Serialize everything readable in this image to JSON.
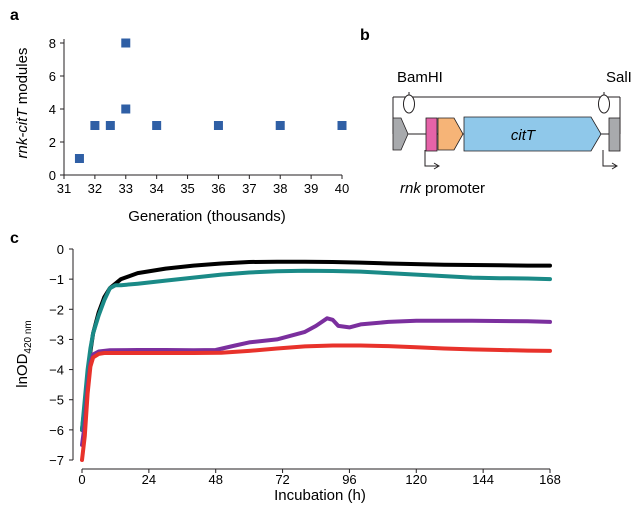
{
  "panels": {
    "a": "a",
    "b": "b",
    "c": "c"
  },
  "panel_b": {
    "site_left": "BamHI",
    "site_right": "SalI",
    "gene_label": "citT",
    "promoter_italic": "rnk",
    "promoter_text": " promoter",
    "colors": {
      "grey_block": "#a8aaad",
      "pink_block": "#e563a8",
      "orange_block": "#f6b477",
      "gene_block": "#8fc8ea"
    }
  },
  "chart_data": [
    {
      "type": "scatter",
      "title": "",
      "xlabel": "Generation (thousands)",
      "ylabel_italic": "rnk-citT",
      "ylabel_rest": " modules",
      "xlim": [
        31,
        40
      ],
      "ylim": [
        0,
        8
      ],
      "xticks": [
        31,
        32,
        33,
        34,
        35,
        36,
        37,
        38,
        39,
        40
      ],
      "yticks": [
        0,
        2,
        4,
        6,
        8
      ],
      "marker_color": "#2f5fa5",
      "points": [
        {
          "x": 31.5,
          "y": 1
        },
        {
          "x": 32,
          "y": 3
        },
        {
          "x": 32.5,
          "y": 3
        },
        {
          "x": 33,
          "y": 4
        },
        {
          "x": 33,
          "y": 8
        },
        {
          "x": 34,
          "y": 3
        },
        {
          "x": 36,
          "y": 3
        },
        {
          "x": 38,
          "y": 3
        },
        {
          "x": 40,
          "y": 3
        }
      ]
    },
    {
      "type": "line",
      "title": "",
      "xlabel": "Incubation (h)",
      "ylabel_main": "lnOD",
      "ylabel_sub": "420 nm",
      "xlim": [
        0,
        168
      ],
      "ylim": [
        -7,
        0
      ],
      "xticks": [
        0,
        24,
        48,
        72,
        96,
        120,
        144,
        168
      ],
      "yticks": [
        0,
        -1,
        -2,
        -3,
        -4,
        -5,
        -6,
        -7
      ],
      "series": [
        {
          "color": "#000000",
          "x": [
            0,
            1,
            2,
            3,
            4,
            6,
            8,
            10,
            14,
            20,
            30,
            40,
            50,
            60,
            70,
            80,
            90,
            100,
            110,
            120,
            130,
            140,
            150,
            160,
            168
          ],
          "y": [
            -6.0,
            -5.2,
            -4.2,
            -3.4,
            -2.8,
            -2.1,
            -1.6,
            -1.3,
            -1.0,
            -0.8,
            -0.65,
            -0.55,
            -0.48,
            -0.43,
            -0.42,
            -0.42,
            -0.43,
            -0.45,
            -0.48,
            -0.5,
            -0.52,
            -0.53,
            -0.54,
            -0.55,
            -0.55
          ]
        },
        {
          "color": "#1a8a87",
          "x": [
            0,
            1,
            2,
            3,
            4,
            6,
            8,
            10,
            12,
            14,
            20,
            30,
            40,
            50,
            60,
            70,
            80,
            90,
            100,
            110,
            120,
            130,
            140,
            150,
            160,
            168
          ],
          "y": [
            -6.0,
            -5.0,
            -4.0,
            -3.3,
            -2.8,
            -2.2,
            -1.7,
            -1.3,
            -1.2,
            -1.2,
            -1.15,
            -1.05,
            -0.95,
            -0.85,
            -0.78,
            -0.74,
            -0.72,
            -0.73,
            -0.75,
            -0.8,
            -0.85,
            -0.9,
            -0.95,
            -0.97,
            -0.98,
            -1.0
          ]
        },
        {
          "color": "#7b2f9e",
          "x": [
            0,
            1,
            2,
            3,
            4,
            6,
            8,
            10,
            20,
            30,
            40,
            48,
            55,
            60,
            70,
            80,
            84,
            88,
            90,
            92,
            96,
            100,
            110,
            120,
            140,
            160,
            168
          ],
          "y": [
            -6.5,
            -5.8,
            -4.6,
            -3.8,
            -3.5,
            -3.4,
            -3.38,
            -3.36,
            -3.35,
            -3.35,
            -3.36,
            -3.35,
            -3.2,
            -3.1,
            -3.0,
            -2.75,
            -2.55,
            -2.3,
            -2.35,
            -2.55,
            -2.6,
            -2.5,
            -2.42,
            -2.38,
            -2.38,
            -2.4,
            -2.42
          ]
        },
        {
          "color": "#e8322b",
          "x": [
            0,
            1,
            2,
            3,
            4,
            6,
            8,
            10,
            20,
            30,
            40,
            50,
            60,
            70,
            80,
            90,
            100,
            110,
            120,
            130,
            140,
            150,
            160,
            168
          ],
          "y": [
            -7.0,
            -6.2,
            -4.8,
            -3.9,
            -3.6,
            -3.48,
            -3.45,
            -3.45,
            -3.45,
            -3.45,
            -3.45,
            -3.44,
            -3.38,
            -3.3,
            -3.23,
            -3.2,
            -3.2,
            -3.22,
            -3.26,
            -3.3,
            -3.33,
            -3.35,
            -3.37,
            -3.38
          ]
        }
      ]
    }
  ]
}
